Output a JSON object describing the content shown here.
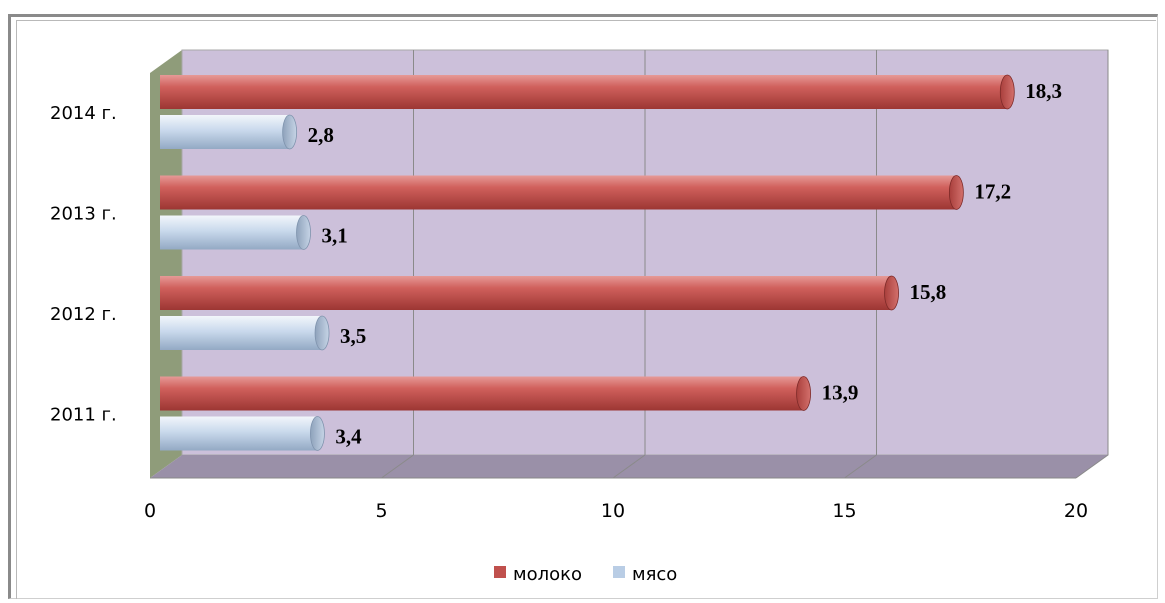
{
  "chart_data": {
    "type": "bar",
    "orientation": "horizontal",
    "style": "3d-cylinder",
    "categories": [
      "2011 г.",
      "2012 г.",
      "2013 г.",
      "2014 г."
    ],
    "series": [
      {
        "name": "молоко",
        "values": [
          13.9,
          15.8,
          17.2,
          18.3
        ],
        "value_labels": [
          "13,9",
          "15,8",
          "17,2",
          "18,3"
        ],
        "color": "#c0504d"
      },
      {
        "name": "мясо",
        "values": [
          3.4,
          3.5,
          3.1,
          2.8
        ],
        "value_labels": [
          "3,4",
          "3,5",
          "3,1",
          "2,8"
        ],
        "color": "#b9cde5"
      }
    ],
    "xlim": [
      0,
      20
    ],
    "xticks": [
      "0",
      "5",
      "10",
      "15",
      "20"
    ],
    "grid": true,
    "legend_position": "bottom",
    "colors": {
      "plot_wall": "#ccc0da",
      "plot_floor": "#9a90a8",
      "side_wall": "#8f9c7a"
    }
  }
}
